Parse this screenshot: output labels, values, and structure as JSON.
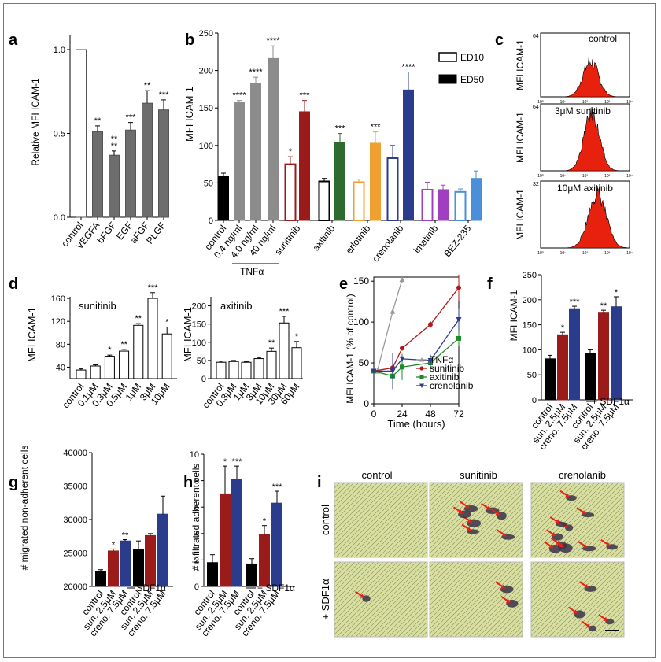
{
  "chart_data": [
    {
      "panel": "a",
      "type": "bar",
      "ylabel": "Relative MFI ICAM-1",
      "ylim": [
        0,
        1.1
      ],
      "yticks": [
        0.0,
        0.5,
        1.0
      ],
      "categories": [
        "control",
        "VEGFA",
        "bFGF",
        "EGF",
        "aFGF",
        "PLGF"
      ],
      "values": [
        1.0,
        0.51,
        0.37,
        0.52,
        0.68,
        0.64
      ],
      "errors": [
        0,
        0.035,
        0.025,
        0.045,
        0.075,
        0.06
      ],
      "significance": [
        "",
        "**",
        "**\n**",
        "***",
        "**",
        "***"
      ],
      "colors": [
        "#ffffff",
        "#6d6d6d",
        "#6d6d6d",
        "#6d6d6d",
        "#6d6d6d",
        "#6d6d6d"
      ]
    },
    {
      "panel": "b",
      "type": "bar",
      "ylabel": "MFI ICAM-1",
      "ylim": [
        0,
        250
      ],
      "yticks": [
        0,
        50,
        100,
        150,
        200,
        250
      ],
      "categories": [
        "control",
        "0.4 ng/ml",
        "4.0 ng/ml",
        "40 ng/ml",
        "sunitinib",
        "axitinib",
        "erlotinib",
        "crenolanib",
        "imatinib",
        "BEZ-235"
      ],
      "group_label": "TNFα",
      "legend": [
        "ED10",
        "ED50"
      ],
      "bars": [
        {
          "group": "control",
          "value": 59,
          "error": 4,
          "color": "#000000",
          "fill": "#000000",
          "sig": ""
        },
        {
          "group": "0.4 ng/ml",
          "value": 157,
          "error": 3,
          "color": "#8c8c8c",
          "fill": "#8c8c8c",
          "sig": "****"
        },
        {
          "group": "4.0 ng/ml",
          "value": 183,
          "error": 8,
          "color": "#8c8c8c",
          "fill": "#8c8c8c",
          "sig": "****"
        },
        {
          "group": "40 ng/ml",
          "value": 216,
          "error": 17,
          "color": "#8c8c8c",
          "fill": "#8c8c8c",
          "sig": "****"
        },
        {
          "group": "sunitinib",
          "value": 75,
          "error": 10,
          "color": "#9b1b1b",
          "fill": "none",
          "sig": "*"
        },
        {
          "group": "sunitinib",
          "value": 145,
          "error": 15,
          "color": "#9b1b1b",
          "fill": "#9b1b1b",
          "sig": "***"
        },
        {
          "group": "axitinib",
          "value": 52,
          "error": 4,
          "color": "#000000",
          "fill": "none",
          "sig": ""
        },
        {
          "group": "axitinib",
          "value": 104,
          "error": 12,
          "color": "#2e6b2e",
          "fill": "#2e6b2e",
          "sig": "***"
        },
        {
          "group": "erlotinib",
          "value": 51,
          "error": 4,
          "color": "#f0a030",
          "fill": "none",
          "sig": ""
        },
        {
          "group": "erlotinib",
          "value": 103,
          "error": 15,
          "color": "#f0a030",
          "fill": "#f0a030",
          "sig": "***"
        },
        {
          "group": "crenolanib",
          "value": 83,
          "error": 17,
          "color": "#2b3c8c",
          "fill": "none",
          "sig": ""
        },
        {
          "group": "crenolanib",
          "value": 174,
          "error": 24,
          "color": "#2b3c8c",
          "fill": "#2b3c8c",
          "sig": "****"
        },
        {
          "group": "imatinib",
          "value": 41,
          "error": 10,
          "color": "#a040c0",
          "fill": "none",
          "sig": ""
        },
        {
          "group": "imatinib",
          "value": 41,
          "error": 6,
          "color": "#a040c0",
          "fill": "#a040c0",
          "sig": ""
        },
        {
          "group": "BEZ-235",
          "value": 38,
          "error": 4,
          "color": "#4a8fd8",
          "fill": "none",
          "sig": ""
        },
        {
          "group": "BEZ-235",
          "value": 56,
          "error": 10,
          "color": "#4a8fd8",
          "fill": "#4a8fd8",
          "sig": ""
        }
      ]
    },
    {
      "panel": "c",
      "type": "histogram",
      "ylabel": "MFI ICAM-1",
      "x_scale": "log",
      "x_range": [
        "10⁰",
        "10⁴"
      ],
      "x_ticks": [
        "10⁰",
        "10¹",
        "10²",
        "10³",
        "10⁴"
      ],
      "histograms": [
        {
          "label": "control",
          "ymax": "64",
          "peak_log": 2.25,
          "width": 0.35,
          "height": 0.55
        },
        {
          "label": "3μM sunitinib",
          "ymax": "64",
          "peak_log": 2.3,
          "width": 0.35,
          "height": 0.85
        },
        {
          "label": "10μM axitinib",
          "ymax": "32",
          "peak_log": 2.55,
          "width": 0.4,
          "height": 0.8
        }
      ],
      "fill_color": "#e8210f"
    },
    {
      "panel": "d",
      "type": "bar",
      "ylabel": "MFI ICAM-1",
      "series_label": "sunitinib",
      "ylim": [
        20,
        170
      ],
      "yticks": [
        40,
        80,
        120,
        160
      ],
      "categories": [
        "control",
        "0.1μM",
        "0.3μM",
        "0.5μM",
        "1μM",
        "3μM",
        "10μM"
      ],
      "values": [
        35,
        42,
        59,
        68,
        113,
        160,
        98
      ],
      "errors": [
        2,
        2,
        2,
        3,
        3,
        10,
        12
      ],
      "significance": [
        "",
        "",
        "*",
        "**",
        "**",
        "***",
        "*"
      ]
    },
    {
      "panel": "d2",
      "type": "bar",
      "ylabel": "MFI ICAM-1",
      "series_label": "axitinib",
      "ylim": [
        0,
        225
      ],
      "yticks": [
        0,
        50,
        100,
        150,
        200
      ],
      "categories": [
        "control",
        "0.3μM",
        "1μM",
        "3μM",
        "10μM",
        "30μM",
        "60μM"
      ],
      "values": [
        45,
        47,
        45,
        55,
        75,
        153,
        85
      ],
      "errors": [
        3,
        3,
        2,
        3,
        9,
        18,
        17
      ],
      "significance": [
        "",
        "",
        "",
        "",
        "**",
        "***",
        "*"
      ]
    },
    {
      "panel": "e",
      "type": "line",
      "xlabel": "Time (hours)",
      "ylabel": "MFI ICAM-1  (% of control)",
      "xlim": [
        0,
        72
      ],
      "ylim": [
        0,
        155
      ],
      "xticks": [
        0,
        24,
        48,
        72
      ],
      "yticks": [
        0,
        50,
        100,
        150
      ],
      "series": [
        {
          "name": "TNFα",
          "color": "#999999",
          "marker": "triangle",
          "x": [
            3,
            16,
            24
          ],
          "y": [
            40,
            113,
            152
          ],
          "err": [
            3,
            4,
            4
          ]
        },
        {
          "name": "sunitinib",
          "color": "#b01818",
          "marker": "circle",
          "x": [
            0,
            16,
            24,
            48,
            72
          ],
          "y": [
            40,
            44,
            68,
            97,
            142
          ],
          "err": [
            3,
            3,
            3,
            4,
            16
          ]
        },
        {
          "name": "axitinib",
          "color": "#1f8a2a",
          "marker": "square",
          "x": [
            0,
            16,
            24,
            48,
            72
          ],
          "y": [
            40,
            34,
            45,
            50,
            80
          ],
          "err": [
            3,
            3,
            16,
            10,
            10
          ]
        },
        {
          "name": "crenolanib",
          "color": "#2b3c8c",
          "marker": "triangle-down",
          "x": [
            0,
            16,
            24,
            48,
            72
          ],
          "y": [
            40,
            40,
            55,
            53,
            103
          ],
          "err": [
            3,
            22,
            4,
            7,
            14
          ]
        }
      ]
    },
    {
      "panel": "f",
      "type": "bar",
      "ylabel": "MFI ICAM-1",
      "ylim": [
        0,
        250
      ],
      "yticks": [
        0,
        50,
        100,
        150,
        200,
        250
      ],
      "categories": [
        "control",
        "sun. 2.5μM",
        "creno. 7.5μM",
        "control",
        "sun. 2.5μM",
        "creno. 7.5μM"
      ],
      "group_label": "+ SDF1α",
      "values": [
        82,
        130,
        182,
        93,
        175,
        186
      ],
      "errors": [
        7,
        5,
        5,
        7,
        4,
        20
      ],
      "significance": [
        "",
        "*",
        "***",
        "",
        "**",
        "*"
      ],
      "colors": [
        "#000000",
        "#9b1b1b",
        "#2b3c8c",
        "#000000",
        "#9b1b1b",
        "#2b3c8c"
      ]
    },
    {
      "panel": "g",
      "type": "bar",
      "ylabel": "# migrated non-adherent cells",
      "ylim": [
        20000,
        40000
      ],
      "yticks": [
        20000,
        25000,
        30000,
        35000,
        40000
      ],
      "categories": [
        "control",
        "sun. 2.5μM",
        "creno. 7.5μM",
        "control",
        "sun. 2.5μM",
        "creno. 7.5μM"
      ],
      "group_label": "+ SDF1α",
      "values": [
        22200,
        25300,
        26800,
        25500,
        27600,
        30800
      ],
      "errors": [
        300,
        300,
        200,
        1300,
        300,
        2700
      ],
      "significance": [
        "",
        "*",
        "**",
        "",
        "",
        ""
      ],
      "colors": [
        "#000000",
        "#9b1b1b",
        "#2b3c8c",
        "#000000",
        "#9b1b1b",
        "#2b3c8c"
      ]
    },
    {
      "panel": "h",
      "type": "bar",
      "ylabel": "# infiltrated adherent cells",
      "ylim": [
        0,
        10
      ],
      "yticks": [
        0,
        2,
        4,
        6,
        8,
        10
      ],
      "categories": [
        "control",
        "sun. 2.5μM",
        "creno. 7.5μM",
        "control",
        "sun. 2.5μM",
        "creno. 7.5μM"
      ],
      "group_label": "+ SDF1α",
      "values": [
        1.8,
        7.0,
        8.1,
        1.7,
        3.9,
        6.3
      ],
      "errors": [
        0.6,
        2.1,
        1.0,
        0.4,
        0.7,
        0.9
      ],
      "significance": [
        "",
        "*",
        "***",
        "",
        "*",
        "***"
      ],
      "colors": [
        "#000000",
        "#9b1b1b",
        "#2b3c8c",
        "#000000",
        "#9b1b1b",
        "#2b3c8c"
      ]
    },
    {
      "panel": "i",
      "type": "image-grid",
      "columns": [
        "control",
        "sunitinib",
        "crenolanib"
      ],
      "rows": [
        "control",
        "+ SDF1α"
      ],
      "arrows_per_cell": [
        [
          0,
          7,
          10
        ],
        [
          1,
          2,
          4
        ]
      ]
    }
  ],
  "panel_letters": [
    "a",
    "b",
    "c",
    "d",
    "e",
    "f",
    "g",
    "h",
    "i"
  ],
  "colors": {
    "axis": "#000000",
    "gray_bar": "#6d6d6d",
    "tnf_bar": "#8c8c8c",
    "sunitinib": "#9b1b1b",
    "crenolanib": "#2b3c8c",
    "axitinib": "#2e6b2e",
    "erlotinib": "#f0a030",
    "imatinib": "#a040c0",
    "bez": "#4a8fd8",
    "histogram": "#e8210f",
    "micrograph_bg": "#d9dfa0",
    "arrow": "#e8201a"
  }
}
